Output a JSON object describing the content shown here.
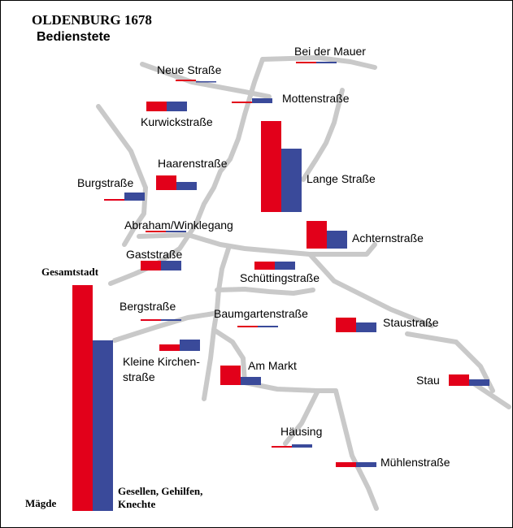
{
  "title": "OLDENBURG 1678",
  "subtitle": "Bedienstete",
  "legend": {
    "total_label": "Gesamtstadt",
    "series_1_label": "Mägde",
    "series_2_label": "Gesellen, Gehilfen, Knechte",
    "series_2_line1": "Gesellen, Gehilfen,",
    "series_2_line2": "Knechte"
  },
  "colors": {
    "maegde": "#e2001a",
    "gesellen": "#3a4a9a",
    "street": "#c9c9c9"
  },
  "streets": [
    {
      "id": "bei-der-mauer",
      "label": "Bei der Mauer"
    },
    {
      "id": "neue-strasse",
      "label": "Neue Straße"
    },
    {
      "id": "mottenstrasse",
      "label": "Mottenstraße"
    },
    {
      "id": "kurwickstrasse",
      "label": "Kurwickstraße"
    },
    {
      "id": "haarenstrasse",
      "label": "Haarenstraße"
    },
    {
      "id": "lange-strasse",
      "label": "Lange Straße"
    },
    {
      "id": "burgstrasse",
      "label": "Burgstraße"
    },
    {
      "id": "abraham-winklegang",
      "label": "Abraham/Winklegang"
    },
    {
      "id": "achternstrasse",
      "label": "Achternstraße"
    },
    {
      "id": "gaststrasse",
      "label": "Gaststraße"
    },
    {
      "id": "schuettingstrasse",
      "label": "Schüttingstraße"
    },
    {
      "id": "bergstrasse",
      "label": "Bergstraße"
    },
    {
      "id": "baumgartenstrasse",
      "label": "Baumgartenstraße"
    },
    {
      "id": "staustrasse",
      "label": "Staustraße"
    },
    {
      "id": "kleine-kirchenstrasse",
      "label": "Kleine Kirchenstraße",
      "line1": "Kleine Kirchen-",
      "line2": "straße"
    },
    {
      "id": "am-markt",
      "label": "Am Markt"
    },
    {
      "id": "stau",
      "label": "Stau"
    },
    {
      "id": "haeusing",
      "label": "Häusing"
    },
    {
      "id": "muehlenstrasse",
      "label": "Mühlenstraße"
    }
  ],
  "chart_data": {
    "type": "bar",
    "note_units": "relative bar heights (no values printed; estimated from bar heights)",
    "series": [
      {
        "name": "Mägde",
        "color": "#e2001a"
      },
      {
        "name": "Gesellen, Gehilfen, Knechte",
        "color": "#3a4a9a"
      }
    ],
    "categories": [
      "Bei der Mauer",
      "Neue Straße",
      "Mottenstraße",
      "Kurwickstraße",
      "Haarenstraße",
      "Lange Straße",
      "Burgstraße",
      "Abraham/Winklegang",
      "Achternstraße",
      "Gaststraße",
      "Schüttingstraße",
      "Bergstraße",
      "Baumgartenstraße",
      "Staustraße",
      "Kleine Kirchenstraße",
      "Am Markt",
      "Stau",
      "Häusing",
      "Mühlenstraße",
      "Gesamtstadt"
    ],
    "maegde": [
      1,
      1,
      1,
      6,
      9,
      56,
      1,
      1,
      17,
      6,
      5,
      1,
      1,
      9,
      4,
      12,
      7,
      1,
      3,
      139
    ],
    "gesellen": [
      1,
      0,
      3,
      6,
      5,
      39,
      5,
      1,
      11,
      6,
      5,
      1,
      1,
      6,
      7,
      5,
      4,
      2,
      3,
      105
    ]
  }
}
